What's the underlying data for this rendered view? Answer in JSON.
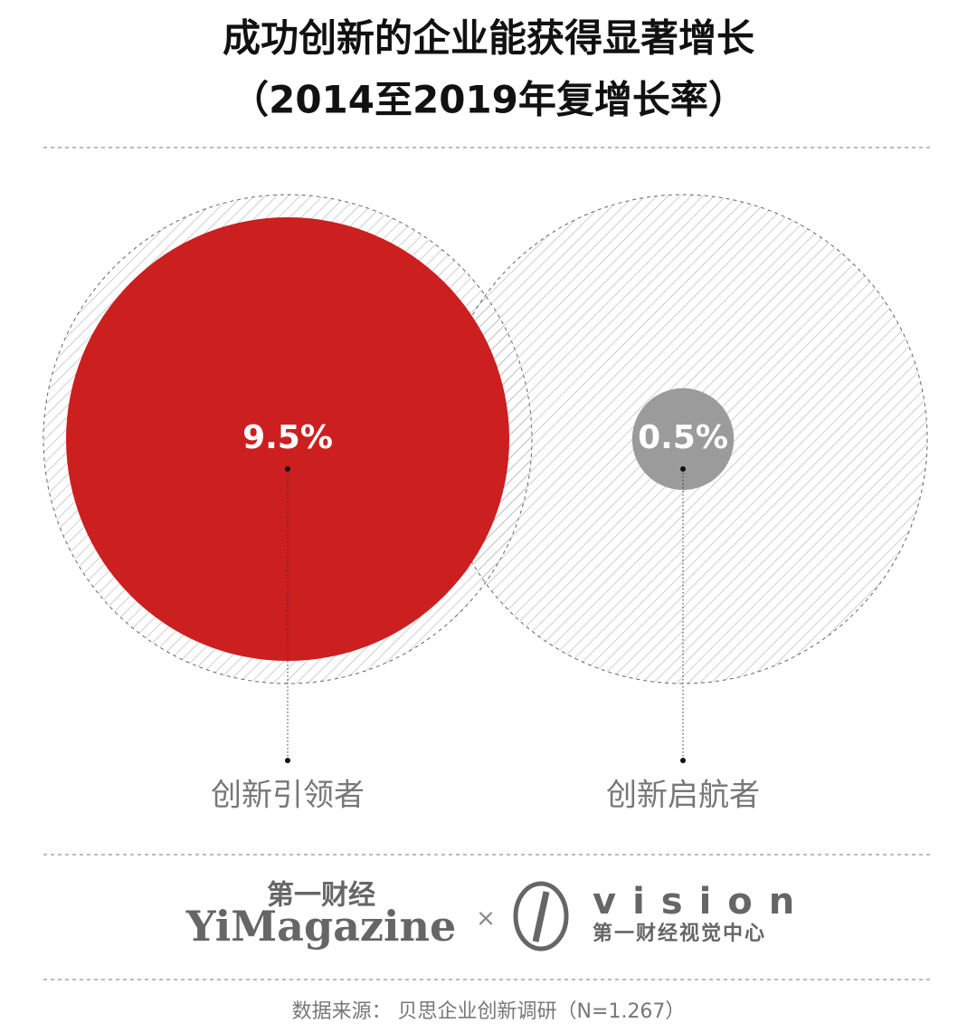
{
  "chart_data": {
    "type": "bubble",
    "title": "成功创新的企业能获得显著增长",
    "subtitle": "（2014至2019年复增长率）",
    "categories": [
      "创新引领者",
      "创新启航者"
    ],
    "values": [
      9.5,
      0.5
    ],
    "value_labels": [
      "9.5%",
      "0.5%"
    ],
    "colors": [
      "#cc1f1f",
      "#9b9b9b"
    ]
  },
  "footer": {
    "brand_cn": "第一财经",
    "brand_en": "YiMagazine",
    "cross": "×",
    "partner": "vision",
    "partner_cn": "第一财经视觉中心",
    "source": "数据来源： 贝思企业创新调研（N=1.267）"
  }
}
